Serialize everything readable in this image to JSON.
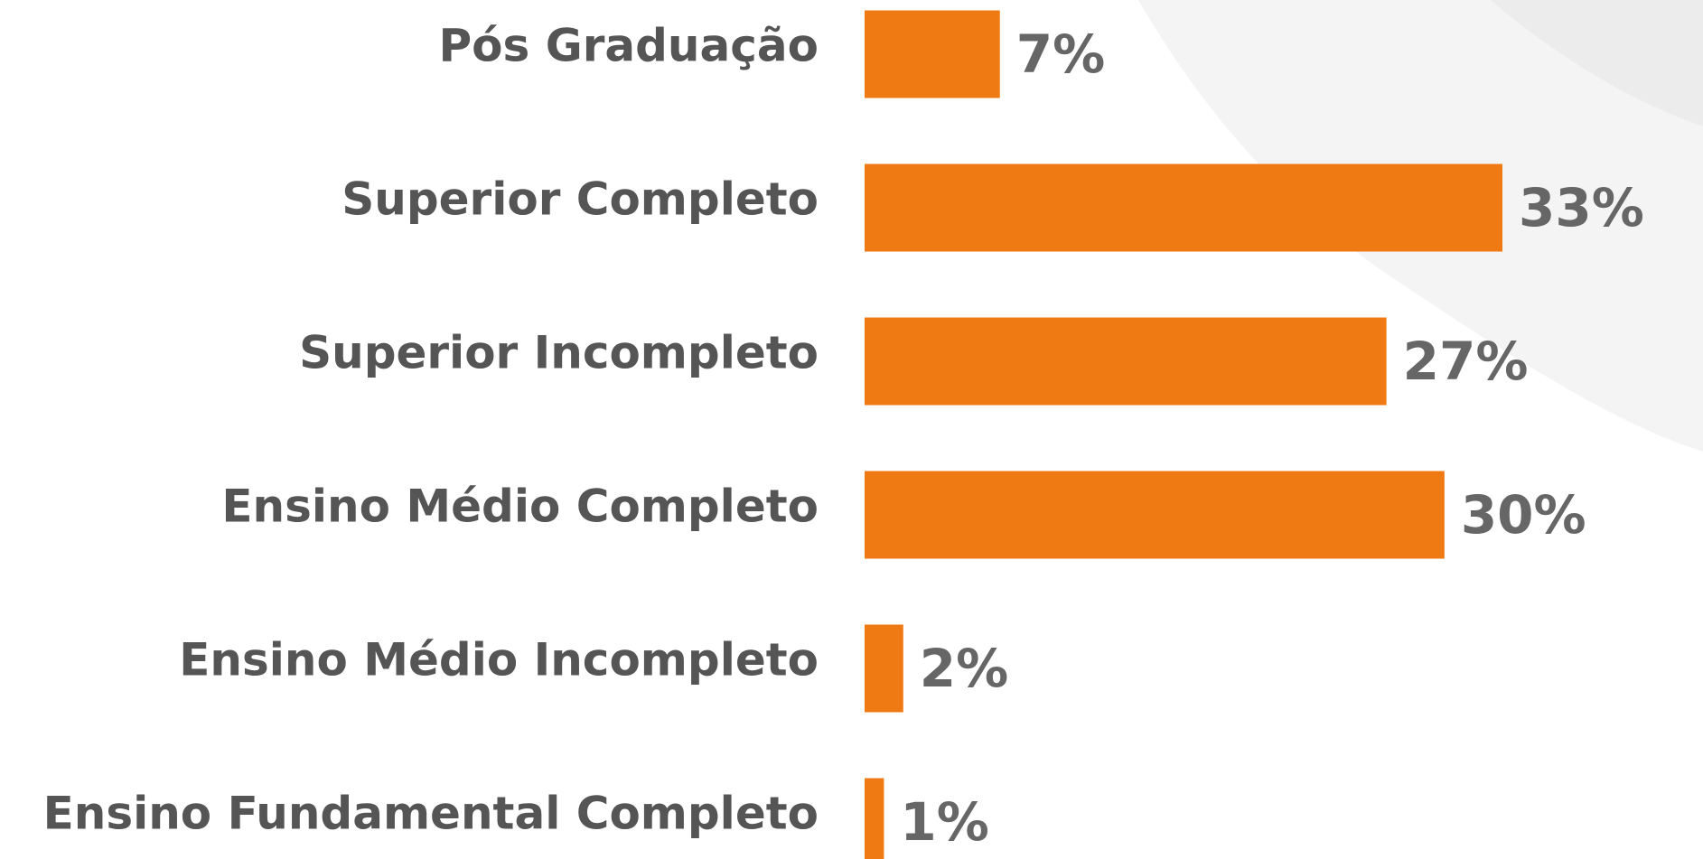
{
  "chart_data": {
    "type": "bar",
    "orientation": "horizontal",
    "categories": [
      "Pós Graduação",
      "Superior Completo",
      "Superior Incompleto",
      "Ensino Médio Completo",
      "Ensino Médio Incompleto",
      "Ensino Fundamental Completo"
    ],
    "values": [
      7,
      33,
      27,
      30,
      2,
      1
    ],
    "value_labels": [
      "7%",
      "33%",
      "27%",
      "30%",
      "2%",
      "1%"
    ],
    "color": "#ef7a14"
  }
}
